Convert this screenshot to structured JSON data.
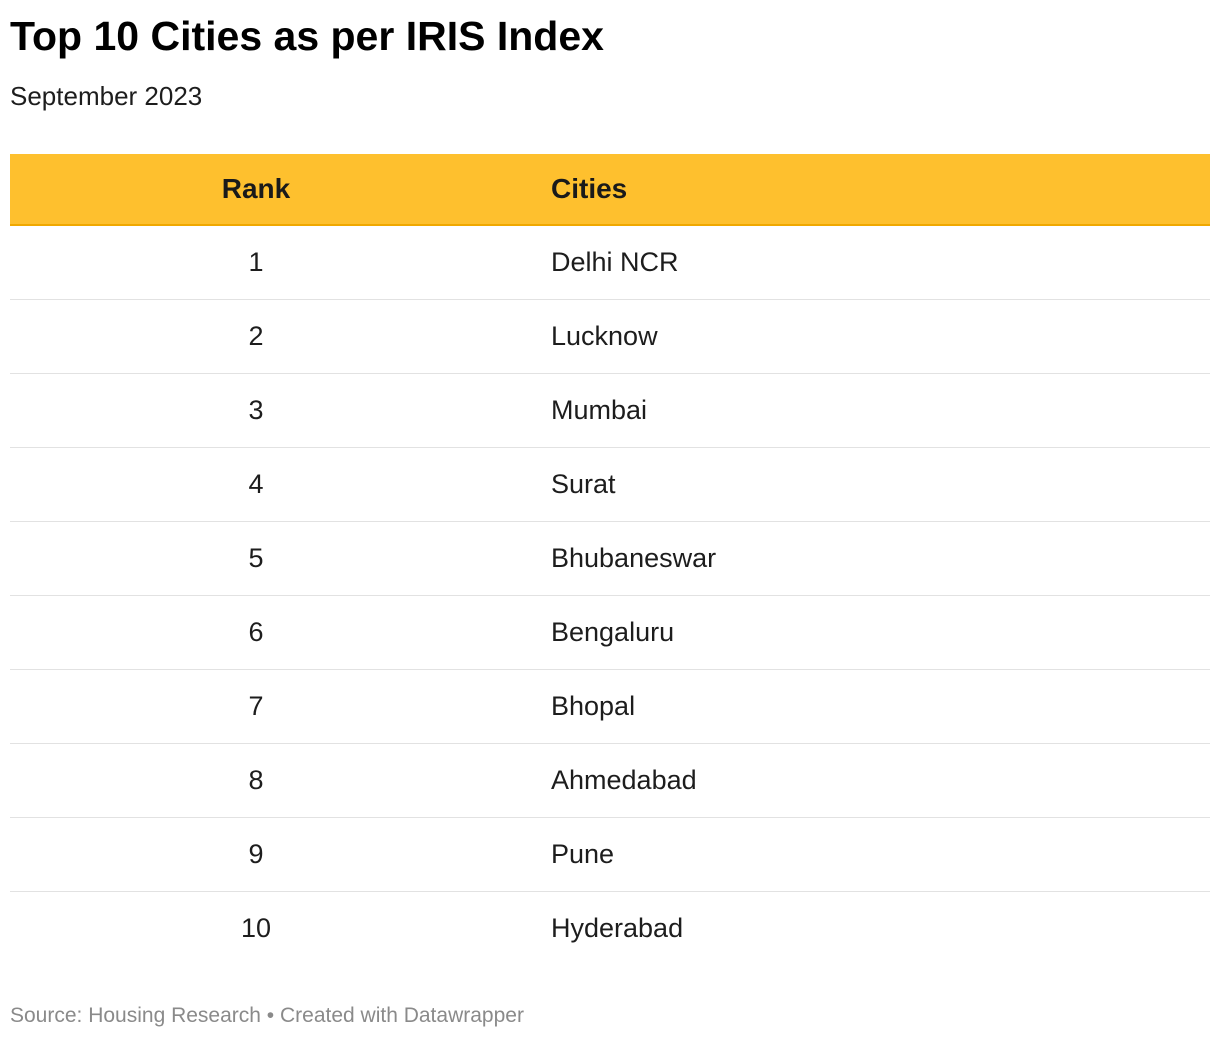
{
  "title": "Top 10 Cities as per IRIS Index",
  "subtitle": "September 2023",
  "table": {
    "headers": [
      "Rank",
      "Cities"
    ],
    "rows": [
      [
        "1",
        "Delhi NCR"
      ],
      [
        "2",
        "Lucknow"
      ],
      [
        "3",
        "Mumbai"
      ],
      [
        "4",
        "Surat"
      ],
      [
        "5",
        "Bhubaneswar"
      ],
      [
        "6",
        "Bengaluru"
      ],
      [
        "7",
        "Bhopal"
      ],
      [
        "8",
        "Ahmedabad"
      ],
      [
        "9",
        "Pune"
      ],
      [
        "10",
        "Hyderabad"
      ]
    ]
  },
  "footer": {
    "text": "Source: Housing Research • Created with Datawrapper"
  },
  "colors": {
    "header_background": "#fec02e",
    "row_divider": "#e2e2e2",
    "footer_text": "#8a8a8a"
  },
  "chart_data": {
    "type": "table",
    "title": "Top 10 Cities as per IRIS Index",
    "subtitle": "September 2023",
    "columns": [
      "Rank",
      "Cities"
    ],
    "rows": [
      [
        1,
        "Delhi NCR"
      ],
      [
        2,
        "Lucknow"
      ],
      [
        3,
        "Mumbai"
      ],
      [
        4,
        "Surat"
      ],
      [
        5,
        "Bhubaneswar"
      ],
      [
        6,
        "Bengaluru"
      ],
      [
        7,
        "Bhopal"
      ],
      [
        8,
        "Ahmedabad"
      ],
      [
        9,
        "Pune"
      ],
      [
        10,
        "Hyderabad"
      ]
    ]
  }
}
